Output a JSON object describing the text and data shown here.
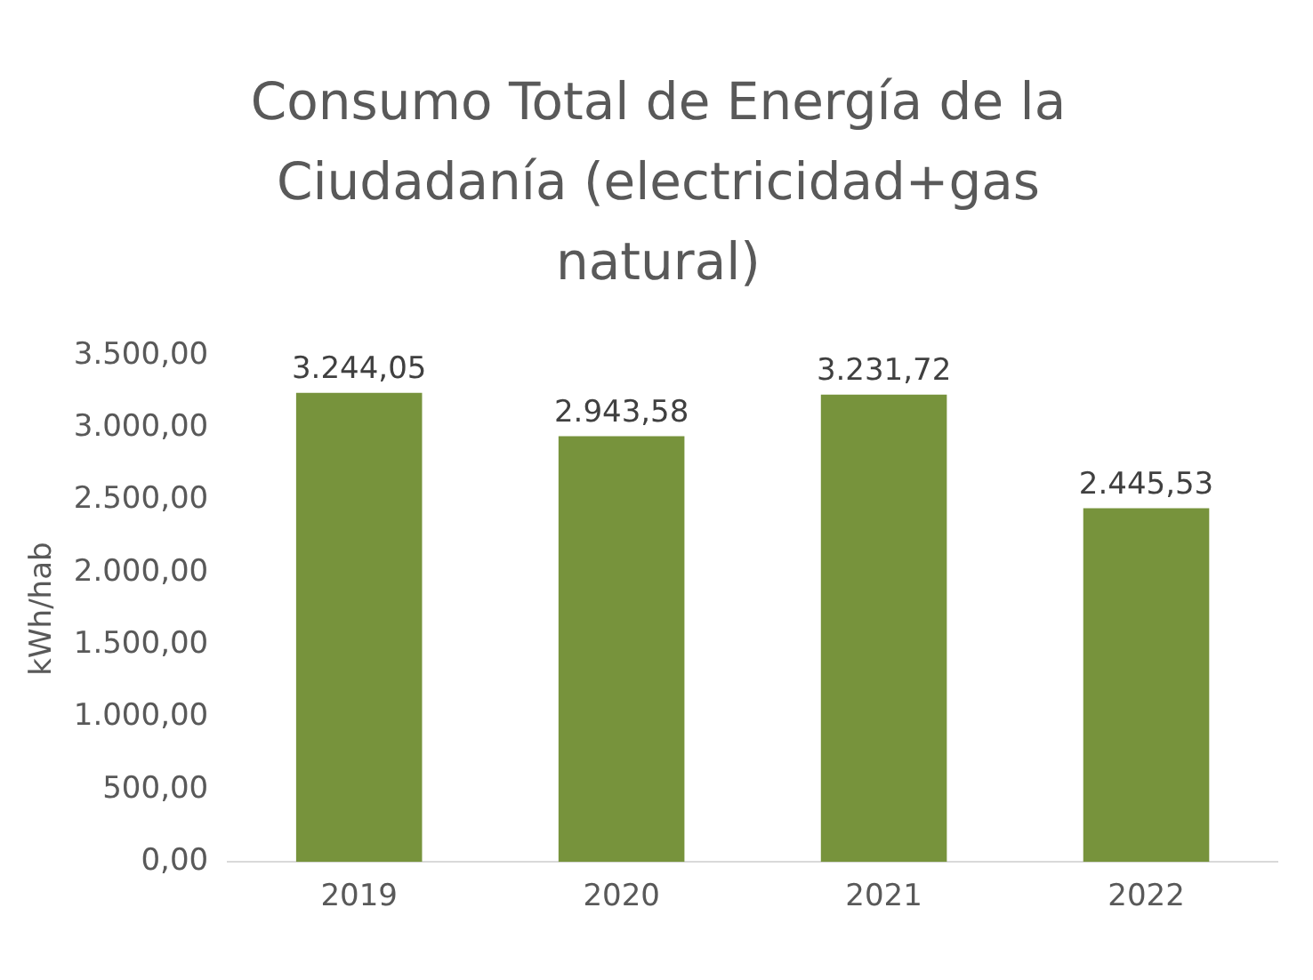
{
  "chart_data": {
    "type": "bar",
    "title": "Consumo Total de Energía de la Ciudadanía (electricidad+gas natural)",
    "ylabel": "kWh/hab",
    "categories": [
      "2019",
      "2020",
      "2021",
      "2022"
    ],
    "values": [
      3244.05,
      2943.58,
      3231.72,
      2445.53
    ],
    "value_labels": [
      "3.244,05",
      "2.943,58",
      "3.231,72",
      "2.445,53"
    ],
    "color": "#77933c",
    "ylim": [
      0,
      3500
    ],
    "yticks": [
      {
        "value": 0,
        "label": "0,00"
      },
      {
        "value": 500,
        "label": "500,00"
      },
      {
        "value": 1000,
        "label": "1.000,00"
      },
      {
        "value": 1500,
        "label": "1.500,00"
      },
      {
        "value": 2000,
        "label": "2.000,00"
      },
      {
        "value": 2500,
        "label": "2.500,00"
      },
      {
        "value": 3000,
        "label": "3.000,00"
      },
      {
        "value": 3500,
        "label": "3.500,00"
      }
    ],
    "grid": false,
    "legend": false
  }
}
